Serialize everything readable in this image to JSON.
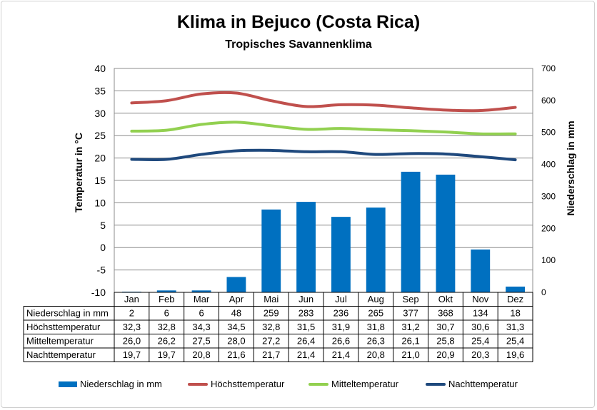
{
  "chart_data": {
    "type": "bar",
    "title": "Klima in Bejuco (Costa Rica)",
    "subtitle": "Tropisches Savannenklima",
    "ylabel_left": "Temperatur in °C",
    "ylabel_right": "Niederschlag in mm",
    "ylim_left": [
      -10,
      40
    ],
    "ylim_right": [
      0,
      700
    ],
    "yticks_left": [
      "40",
      "35",
      "30",
      "25",
      "20",
      "15",
      "10",
      "5",
      "0",
      "-5",
      "-10"
    ],
    "yticks_right": [
      "700",
      "600",
      "500",
      "400",
      "300",
      "200",
      "100",
      "0"
    ],
    "grid": true,
    "legend_position": "bottom",
    "categories": [
      "Jan",
      "Feb",
      "Mar",
      "Apr",
      "Mai",
      "Jun",
      "Jul",
      "Aug",
      "Sep",
      "Okt",
      "Nov",
      "Dez"
    ],
    "series": [
      {
        "name": "Niederschlag in mm",
        "kind": "bar",
        "axis": "right",
        "color": "#0070c0",
        "values": [
          2,
          6,
          6,
          48,
          259,
          283,
          236,
          265,
          377,
          368,
          134,
          18
        ],
        "labels": [
          "2",
          "6",
          "6",
          "48",
          "259",
          "283",
          "236",
          "265",
          "377",
          "368",
          "134",
          "18"
        ]
      },
      {
        "name": "Höchsttemperatur",
        "kind": "line",
        "axis": "left",
        "color": "#c0504d",
        "values": [
          32.3,
          32.8,
          34.3,
          34.5,
          32.8,
          31.5,
          31.9,
          31.8,
          31.2,
          30.7,
          30.6,
          31.3
        ],
        "labels": [
          "32,3",
          "32,8",
          "34,3",
          "34,5",
          "32,8",
          "31,5",
          "31,9",
          "31,8",
          "31,2",
          "30,7",
          "30,6",
          "31,3"
        ]
      },
      {
        "name": "Mitteltemperatur",
        "kind": "line",
        "axis": "left",
        "color": "#92d050",
        "values": [
          26.0,
          26.2,
          27.5,
          28.0,
          27.2,
          26.4,
          26.6,
          26.3,
          26.1,
          25.8,
          25.4,
          25.4
        ],
        "labels": [
          "26,0",
          "26,2",
          "27,5",
          "28,0",
          "27,2",
          "26,4",
          "26,6",
          "26,3",
          "26,1",
          "25,8",
          "25,4",
          "25,4"
        ]
      },
      {
        "name": "Nachttemperatur",
        "kind": "line",
        "axis": "left",
        "color": "#1f497d",
        "values": [
          19.7,
          19.7,
          20.8,
          21.6,
          21.7,
          21.4,
          21.4,
          20.8,
          21.0,
          20.9,
          20.3,
          19.6
        ],
        "labels": [
          "19,7",
          "19,7",
          "20,8",
          "21,6",
          "21,7",
          "21,4",
          "21,4",
          "20,8",
          "21,0",
          "20,9",
          "20,3",
          "19,6"
        ]
      }
    ]
  }
}
